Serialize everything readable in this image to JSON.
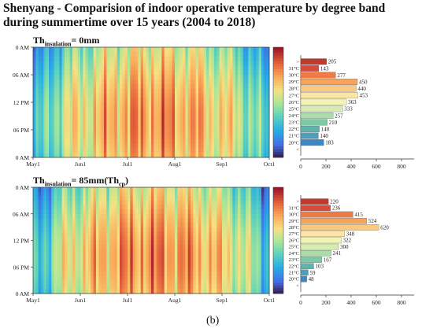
{
  "title_line1": "Shenyang - Comparision of indoor operative temperature by degree band",
  "title_line2": "during summertime over 15 years (2004 to 2018)",
  "caption": "(b)",
  "chart_data": [
    {
      "type": "heatmap+bar",
      "panel_label_prefix": "Th",
      "panel_label_sub": "insulation",
      "panel_label_value": "= 0mm",
      "panel_label_value_sub": "",
      "panel_label_value_tail": "",
      "heatmap": {
        "x_ticks": [
          "May1",
          "Jun1",
          "Jul1",
          "Aug1",
          "Sep1",
          "Oct1"
        ],
        "y_ticks": [
          "0 AM",
          "06 AM",
          "12 PM",
          "06 PM",
          "0 AM"
        ]
      },
      "bar": {
        "categories": [
          ">",
          "31°C",
          "30°C",
          "29°C",
          "28°C",
          "27°C",
          "26°C",
          "25°C",
          "24°C",
          "23°C",
          "22°C",
          "21°C",
          "20°C",
          "<"
        ],
        "values": [
          205,
          143,
          277,
          450,
          440,
          453,
          363,
          333,
          257,
          210,
          148,
          140,
          183,
          null
        ],
        "x_ticks": [
          0,
          200,
          400,
          600,
          800
        ],
        "xlim": [
          0,
          900
        ]
      }
    },
    {
      "type": "heatmap+bar",
      "panel_label_prefix": "Th",
      "panel_label_sub": "insulation",
      "panel_label_value": "= 85mm(Th",
      "panel_label_value_sub": "cp",
      "panel_label_value_tail": ")",
      "heatmap": {
        "x_ticks": [
          "May1",
          "Jun1",
          "Jul1",
          "Aug1",
          "Sep1",
          "Oct1"
        ],
        "y_ticks": [
          "0 AM",
          "06 AM",
          "12 PM",
          "06 PM",
          "0 AM"
        ]
      },
      "bar": {
        "categories": [
          ">",
          "31°C",
          "30°C",
          "29°C",
          "28°C",
          "27°C",
          "26°C",
          "25°C",
          "24°C",
          "23°C",
          "22°C",
          "21°C",
          "20°C",
          "<"
        ],
        "values": [
          220,
          236,
          415,
          524,
          620,
          348,
          322,
          300,
          241,
          167,
          103,
          59,
          48,
          null
        ],
        "x_ticks": [
          0,
          200,
          400,
          600,
          800
        ],
        "xlim": [
          0,
          900
        ]
      }
    }
  ],
  "colors": {
    "bands": [
      "#c0392b",
      "#d94a3a",
      "#ee7b45",
      "#f6a35c",
      "#fbc97d",
      "#fde6a3",
      "#f3f3b6",
      "#d6ecb0",
      "#acdca7",
      "#7fc9a6",
      "#5db5ad",
      "#4b9fbc",
      "#3f86c2",
      "#3a5fa8"
    ]
  }
}
